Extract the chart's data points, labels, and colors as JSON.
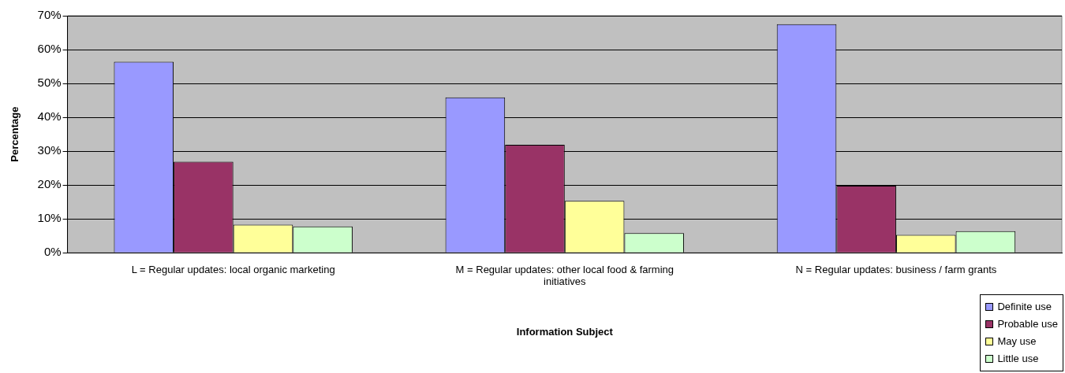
{
  "chart_data": {
    "type": "bar",
    "xlabel": "Information Subject",
    "ylabel": "Percentage",
    "categories": [
      "L = Regular updates: local organic marketing",
      "M = Regular updates: other local food & farming initiatives",
      "N = Regular updates: business / farm grants"
    ],
    "series": [
      {
        "name": "Definite use",
        "color": "#9999ff",
        "values": [
          56.4,
          45.9,
          67.5
        ]
      },
      {
        "name": "Probable use",
        "color": "#993366",
        "values": [
          26.9,
          31.9,
          19.8
        ]
      },
      {
        "name": "May use",
        "color": "#ffff99",
        "values": [
          8.3,
          15.3,
          5.3
        ]
      },
      {
        "name": "Little use",
        "color": "#ccffcc",
        "values": [
          7.8,
          5.8,
          6.4
        ]
      }
    ],
    "ylim": [
      0,
      70
    ],
    "yticks": [
      {
        "value": 0,
        "label": "0%"
      },
      {
        "value": 10,
        "label": "10%"
      },
      {
        "value": 20,
        "label": "20%"
      },
      {
        "value": 30,
        "label": "30%"
      },
      {
        "value": 40,
        "label": "40%"
      },
      {
        "value": 50,
        "label": "50%"
      },
      {
        "value": 60,
        "label": "60%"
      },
      {
        "value": 70,
        "label": "70%"
      }
    ],
    "grid": "y",
    "legend": "bottom right"
  }
}
